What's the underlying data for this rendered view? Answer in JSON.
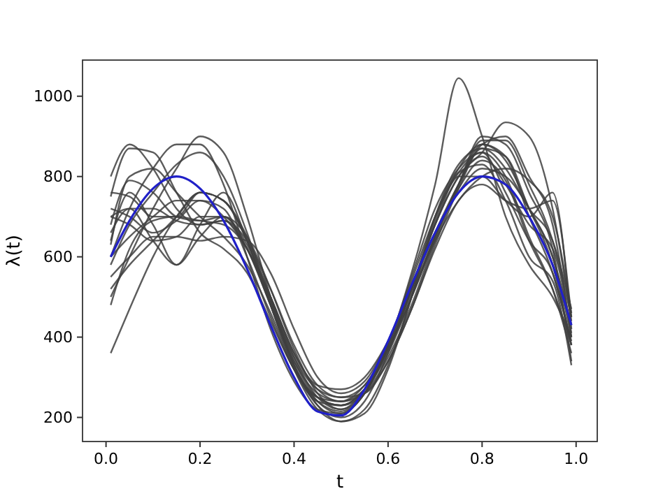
{
  "chart_data": {
    "type": "line",
    "xlabel": "t",
    "ylabel": "λ(t)",
    "xlim": [
      -0.05,
      1.045
    ],
    "ylim": [
      140,
      1090
    ],
    "xticks": [
      {
        "value": 0,
        "label": "0.0"
      },
      {
        "value": 0.2,
        "label": "0.2"
      },
      {
        "value": 0.4,
        "label": "0.4"
      },
      {
        "value": 0.6,
        "label": "0.6"
      },
      {
        "value": 0.8,
        "label": "0.8"
      },
      {
        "value": 1,
        "label": "1.0"
      }
    ],
    "yticks": [
      200,
      400,
      600,
      800,
      1000
    ],
    "grid": false,
    "marker": "none",
    "line_style": "solid",
    "x": [
      0.01,
      0.05,
      0.1,
      0.15,
      0.2,
      0.25,
      0.3,
      0.35,
      0.4,
      0.45,
      0.5,
      0.55,
      0.6,
      0.65,
      0.7,
      0.75,
      0.8,
      0.85,
      0.9,
      0.95,
      0.99
    ],
    "series": [
      {
        "color": "#404040",
        "values": [
          360,
          470,
          600,
          700,
          760,
          740,
          650,
          500,
          350,
          250,
          220,
          270,
          390,
          530,
          660,
          760,
          820,
          800,
          720,
          600,
          430
        ]
      },
      {
        "color": "#404040",
        "values": [
          800,
          880,
          820,
          720,
          680,
          690,
          620,
          480,
          330,
          240,
          210,
          260,
          380,
          560,
          780,
          1045,
          900,
          700,
          580,
          500,
          400
        ]
      },
      {
        "color": "#404040",
        "values": [
          700,
          720,
          640,
          580,
          650,
          700,
          650,
          520,
          370,
          260,
          220,
          260,
          370,
          520,
          680,
          800,
          860,
          935,
          900,
          720,
          440
        ]
      },
      {
        "color": "#404040",
        "values": [
          640,
          760,
          680,
          580,
          680,
          760,
          640,
          480,
          330,
          240,
          215,
          260,
          380,
          550,
          720,
          820,
          860,
          760,
          640,
          560,
          380
        ]
      },
      {
        "color": "#404040",
        "values": [
          550,
          600,
          650,
          650,
          640,
          650,
          640,
          560,
          420,
          300,
          260,
          290,
          390,
          520,
          660,
          780,
          870,
          850,
          720,
          600,
          400
        ]
      },
      {
        "color": "#404040",
        "values": [
          750,
          870,
          860,
          760,
          660,
          620,
          560,
          440,
          320,
          250,
          240,
          280,
          380,
          510,
          650,
          780,
          890,
          890,
          780,
          640,
          450
        ]
      },
      {
        "color": "#404040",
        "values": [
          600,
          720,
          820,
          880,
          880,
          780,
          600,
          420,
          290,
          220,
          210,
          260,
          380,
          540,
          700,
          810,
          860,
          800,
          650,
          520,
          360
        ]
      },
      {
        "color": "#404040",
        "values": [
          680,
          790,
          760,
          700,
          690,
          700,
          620,
          480,
          340,
          260,
          240,
          270,
          360,
          500,
          650,
          780,
          880,
          850,
          700,
          560,
          390
        ]
      },
      {
        "color": "#404040",
        "values": [
          500,
          600,
          720,
          820,
          900,
          860,
          700,
          500,
          330,
          230,
          200,
          240,
          360,
          520,
          680,
          800,
          850,
          780,
          680,
          620,
          410
        ]
      },
      {
        "color": "#404040",
        "values": [
          720,
          700,
          660,
          690,
          740,
          720,
          600,
          450,
          320,
          250,
          230,
          270,
          370,
          520,
          700,
          810,
          830,
          740,
          600,
          540,
          330
        ]
      },
      {
        "color": "#404040",
        "values": [
          520,
          580,
          640,
          700,
          760,
          740,
          640,
          480,
          330,
          230,
          190,
          210,
          320,
          500,
          700,
          830,
          870,
          820,
          720,
          640,
          470
        ]
      },
      {
        "color": "#404040",
        "values": [
          630,
          800,
          820,
          760,
          700,
          650,
          580,
          460,
          320,
          240,
          230,
          270,
          370,
          500,
          640,
          740,
          800,
          820,
          790,
          700,
          460
        ]
      },
      {
        "color": "#404040",
        "values": [
          480,
          620,
          690,
          700,
          690,
          680,
          620,
          490,
          340,
          250,
          230,
          260,
          350,
          480,
          640,
          780,
          900,
          880,
          760,
          620,
          340
        ]
      },
      {
        "color": "#404040",
        "values": [
          760,
          750,
          700,
          700,
          760,
          740,
          640,
          490,
          350,
          270,
          250,
          280,
          370,
          500,
          650,
          770,
          840,
          790,
          640,
          520,
          380
        ]
      },
      {
        "color": "#404040",
        "values": [
          600,
          650,
          700,
          740,
          740,
          700,
          620,
          500,
          360,
          270,
          240,
          260,
          340,
          470,
          630,
          770,
          880,
          900,
          800,
          680,
          400
        ]
      },
      {
        "color": "#404040",
        "values": [
          700,
          680,
          640,
          650,
          700,
          700,
          630,
          500,
          360,
          280,
          270,
          300,
          390,
          520,
          680,
          800,
          800,
          740,
          700,
          760,
          420
        ]
      },
      {
        "color": "#404040",
        "values": [
          580,
          680,
          760,
          830,
          860,
          800,
          660,
          480,
          320,
          220,
          190,
          220,
          330,
          500,
          690,
          820,
          880,
          840,
          720,
          580,
          380
        ]
      },
      {
        "color": "#404040",
        "values": [
          660,
          720,
          720,
          690,
          680,
          690,
          640,
          520,
          380,
          280,
          250,
          260,
          340,
          470,
          620,
          740,
          780,
          740,
          720,
          740,
          450
        ]
      },
      {
        "color": "#2020c8",
        "values": [
          600,
          690,
          770,
          800,
          770,
          690,
          570,
          430,
          300,
          215,
          205,
          270,
          390,
          530,
          660,
          760,
          800,
          780,
          700,
          580,
          430
        ]
      }
    ]
  }
}
